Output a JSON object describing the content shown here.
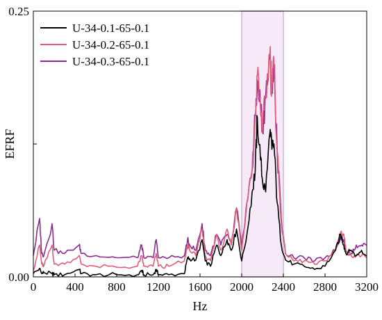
{
  "chart_data": {
    "type": "line",
    "title": "",
    "xlabel": "Hz",
    "ylabel": "EFRF",
    "xlim": [
      0,
      3200
    ],
    "ylim": [
      0,
      0.25
    ],
    "x_ticks": [
      0,
      400,
      800,
      1200,
      1600,
      2000,
      2400,
      2800,
      3200
    ],
    "x_tick_labels": [
      "0",
      "400",
      "800",
      "1200",
      "1600",
      "2000",
      "2400",
      "2800",
      "3200"
    ],
    "y_ticks": [
      0,
      0.25
    ],
    "y_tick_labels": [
      "0.00",
      "0.25"
    ],
    "legend_position": "top-left",
    "grid": false,
    "shaded_band": {
      "x0": 2000,
      "x1": 2400,
      "color": "#f6e9f8",
      "edge_color": "#c9b8d8"
    },
    "x": [
      0,
      60,
      80,
      100,
      180,
      200,
      300,
      440,
      460,
      600,
      800,
      1000,
      1040,
      1060,
      1150,
      1180,
      1200,
      1300,
      1450,
      1480,
      1500,
      1560,
      1620,
      1650,
      1700,
      1760,
      1800,
      1860,
      1900,
      1950,
      2000,
      2050,
      2100,
      2130,
      2150,
      2180,
      2200,
      2230,
      2270,
      2290,
      2310,
      2340,
      2380,
      2420,
      2500,
      2600,
      2700,
      2800,
      2900,
      2950,
      2980,
      3000,
      3050,
      3100,
      3150,
      3200
    ],
    "series": [
      {
        "name": "U-34-0.1-65-0.1",
        "color": "#000000",
        "values": [
          0.003,
          0.008,
          0.003,
          0.004,
          0.003,
          0.002,
          0.002,
          0.007,
          0.003,
          0.002,
          0.002,
          0.002,
          0.006,
          0.002,
          0.002,
          0.007,
          0.002,
          0.002,
          0.003,
          0.018,
          0.017,
          0.016,
          0.035,
          0.015,
          0.01,
          0.03,
          0.02,
          0.035,
          0.025,
          0.045,
          0.015,
          0.04,
          0.08,
          0.1,
          0.15,
          0.11,
          0.09,
          0.08,
          0.135,
          0.12,
          0.125,
          0.07,
          0.03,
          0.016,
          0.012,
          0.01,
          0.007,
          0.01,
          0.025,
          0.04,
          0.03,
          0.022,
          0.025,
          0.02,
          0.025,
          0.02
        ]
      },
      {
        "name": "U-34-0.2-65-0.1",
        "color": "#e05c78",
        "values": [
          0.006,
          0.03,
          0.012,
          0.01,
          0.03,
          0.012,
          0.012,
          0.02,
          0.012,
          0.01,
          0.009,
          0.01,
          0.02,
          0.01,
          0.01,
          0.022,
          0.01,
          0.01,
          0.015,
          0.03,
          0.025,
          0.02,
          0.045,
          0.02,
          0.015,
          0.04,
          0.025,
          0.045,
          0.03,
          0.065,
          0.025,
          0.07,
          0.1,
          0.15,
          0.19,
          0.16,
          0.14,
          0.17,
          0.21,
          0.18,
          0.2,
          0.12,
          0.05,
          0.022,
          0.015,
          0.015,
          0.012,
          0.015,
          0.025,
          0.042,
          0.04,
          0.025,
          0.02,
          0.02,
          0.02,
          0.018
        ]
      },
      {
        "name": "U-34-0.3-65-0.1",
        "color": "#8b2a8f",
        "values": [
          0.02,
          0.055,
          0.022,
          0.02,
          0.05,
          0.025,
          0.022,
          0.03,
          0.022,
          0.02,
          0.018,
          0.018,
          0.03,
          0.018,
          0.018,
          0.035,
          0.018,
          0.018,
          0.02,
          0.035,
          0.03,
          0.025,
          0.05,
          0.025,
          0.02,
          0.04,
          0.03,
          0.04,
          0.03,
          0.065,
          0.028,
          0.07,
          0.1,
          0.15,
          0.185,
          0.16,
          0.14,
          0.17,
          0.205,
          0.175,
          0.195,
          0.12,
          0.055,
          0.022,
          0.018,
          0.018,
          0.015,
          0.018,
          0.025,
          0.038,
          0.035,
          0.025,
          0.022,
          0.03,
          0.03,
          0.03
        ]
      }
    ]
  }
}
